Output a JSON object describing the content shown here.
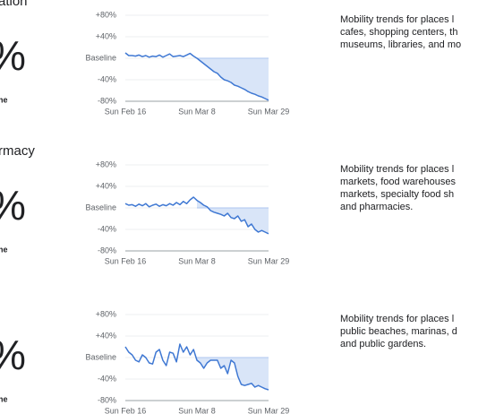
{
  "sections": [
    {
      "heading": "ation",
      "percent": "%",
      "note": "ne",
      "description": [
        "Mobility trends for places l",
        "cafes, shopping centers, th",
        "museums, libraries, and mo"
      ]
    },
    {
      "heading": "rmacy",
      "percent": "%",
      "note": "ne",
      "description": [
        "Mobility trends for places l",
        "markets, food warehouses",
        "markets, specialty food sh",
        "and pharmacies."
      ]
    },
    {
      "percent": "%",
      "note": "ne",
      "description": [
        "Mobility trends for places l",
        "public beaches, marinas, d",
        "and public gardens."
      ]
    }
  ],
  "chart_data": [
    {
      "type": "line",
      "color": "#3f78d3",
      "area_color": "#d9e5f8",
      "categories": [
        "Sun Feb 16",
        null,
        null,
        null,
        null,
        null,
        null,
        null,
        null,
        null,
        null,
        null,
        null,
        null,
        null,
        null,
        null,
        null,
        null,
        null,
        null,
        "Sun Mar 8",
        null,
        null,
        null,
        null,
        null,
        null,
        null,
        null,
        null,
        null,
        null,
        null,
        null,
        null,
        null,
        null,
        null,
        null,
        null,
        null,
        "Sun Mar 29"
      ],
      "values": [
        10,
        5,
        5,
        4,
        6,
        3,
        5,
        2,
        4,
        3,
        6,
        2,
        5,
        8,
        3,
        4,
        5,
        3,
        6,
        9,
        4,
        0,
        -5,
        -10,
        -15,
        -20,
        -25,
        -28,
        -35,
        -40,
        -42,
        -45,
        -50,
        -52,
        -55,
        -58,
        -62,
        -65,
        -67,
        -70,
        -72,
        -75,
        -78
      ],
      "ylim": [
        -80,
        80
      ],
      "yticks": [
        {
          "value": 80,
          "label": "+80%"
        },
        {
          "value": 40,
          "label": "+40%"
        },
        {
          "value": 0,
          "label": "Baseline"
        },
        {
          "value": -40,
          "label": "-40%"
        },
        {
          "value": -80,
          "label": "-80%"
        }
      ],
      "grid": true
    },
    {
      "type": "line",
      "color": "#3f78d3",
      "area_color": "#d9e5f8",
      "categories": [
        "Sun Feb 16",
        null,
        null,
        null,
        null,
        null,
        null,
        null,
        null,
        null,
        null,
        null,
        null,
        null,
        null,
        null,
        null,
        null,
        null,
        null,
        null,
        "Sun Mar 8",
        null,
        null,
        null,
        null,
        null,
        null,
        null,
        null,
        null,
        null,
        null,
        null,
        null,
        null,
        null,
        null,
        null,
        null,
        null,
        null,
        "Sun Mar 29"
      ],
      "values": [
        8,
        5,
        6,
        3,
        7,
        4,
        8,
        2,
        5,
        7,
        3,
        6,
        4,
        8,
        5,
        10,
        6,
        12,
        8,
        15,
        20,
        14,
        10,
        5,
        2,
        -5,
        -8,
        -10,
        -12,
        -15,
        -10,
        -18,
        -20,
        -15,
        -25,
        -22,
        -35,
        -30,
        -40,
        -45,
        -42,
        -45,
        -48
      ],
      "ylim": [
        -80,
        80
      ],
      "yticks": [
        {
          "value": 80,
          "label": "+80%"
        },
        {
          "value": 40,
          "label": "+40%"
        },
        {
          "value": 0,
          "label": "Baseline"
        },
        {
          "value": -40,
          "label": "-40%"
        },
        {
          "value": -80,
          "label": "-80%"
        }
      ],
      "grid": true
    },
    {
      "type": "line",
      "color": "#3f78d3",
      "area_color": "#d9e5f8",
      "categories": [
        "Sun Feb 16",
        null,
        null,
        null,
        null,
        null,
        null,
        null,
        null,
        null,
        null,
        null,
        null,
        null,
        null,
        null,
        null,
        null,
        null,
        null,
        null,
        "Sun Mar 8",
        null,
        null,
        null,
        null,
        null,
        null,
        null,
        null,
        null,
        null,
        null,
        null,
        null,
        null,
        null,
        null,
        null,
        null,
        null,
        null,
        "Sun Mar 29"
      ],
      "values": [
        20,
        10,
        5,
        -5,
        -8,
        5,
        0,
        -10,
        -12,
        10,
        15,
        -5,
        -15,
        10,
        8,
        -8,
        25,
        10,
        20,
        5,
        15,
        -5,
        -10,
        -20,
        -10,
        -5,
        -5,
        -5,
        -20,
        -15,
        -30,
        -5,
        -10,
        -35,
        -50,
        -52,
        -50,
        -48,
        -55,
        -52,
        -55,
        -58,
        -60
      ],
      "ylim": [
        -80,
        80
      ],
      "yticks": [
        {
          "value": 80,
          "label": "+80%"
        },
        {
          "value": 40,
          "label": "+40%"
        },
        {
          "value": 0,
          "label": "Baseline"
        },
        {
          "value": -40,
          "label": "-40%"
        },
        {
          "value": -80,
          "label": "-80%"
        }
      ],
      "grid": true
    }
  ]
}
